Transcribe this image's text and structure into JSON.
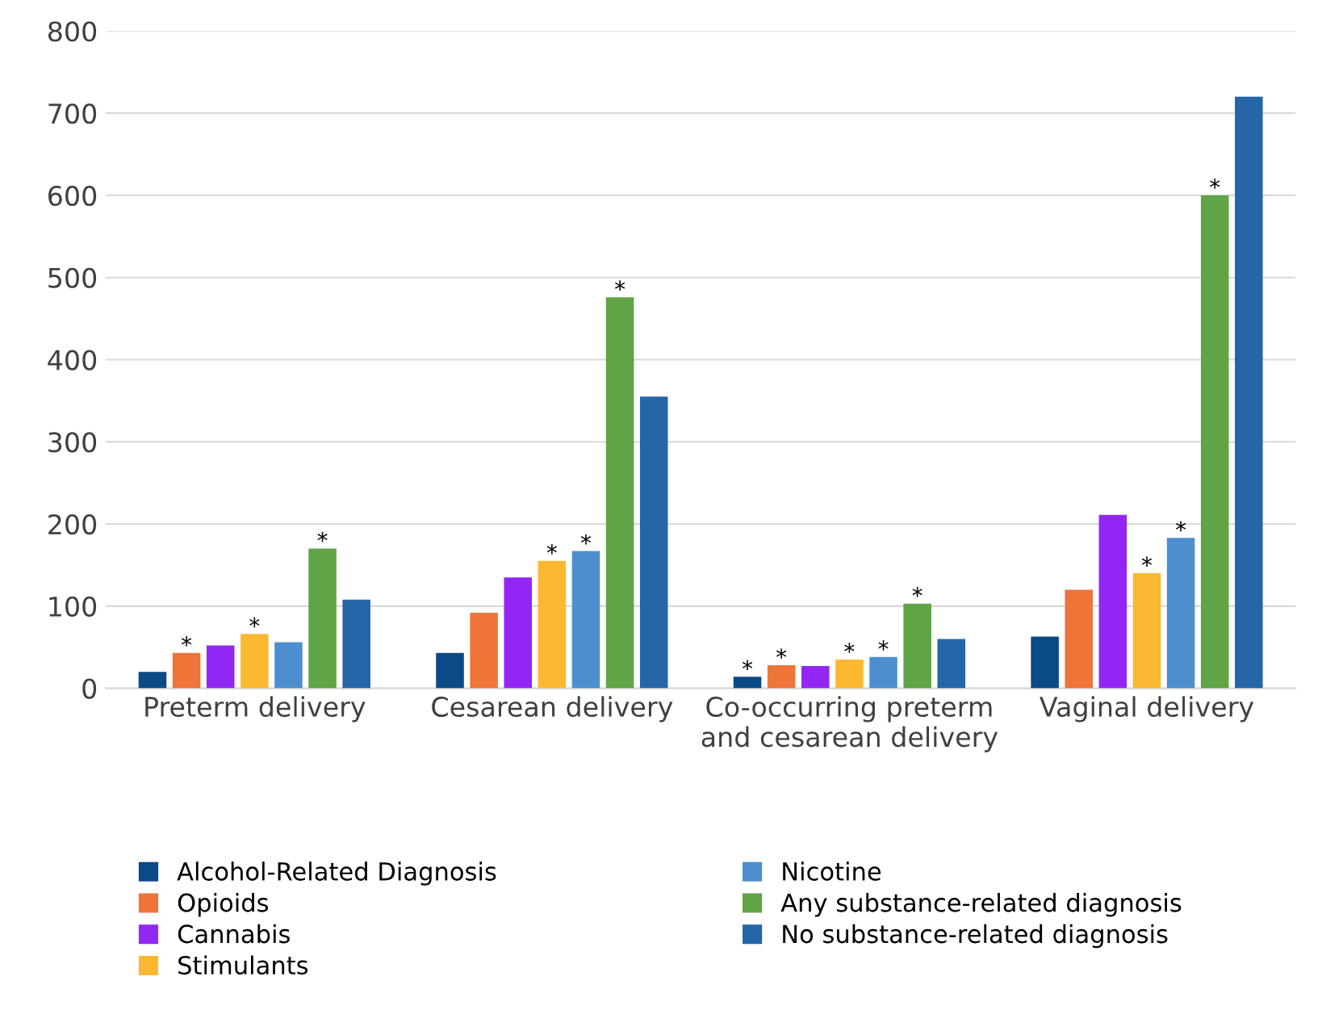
{
  "chart_data": {
    "type": "bar",
    "categories": [
      "Preterm delivery",
      "Cesarean delivery",
      "Co-occurring preterm\nand cesarean delivery",
      "Vaginal delivery"
    ],
    "series": [
      {
        "name": "Alcohol-Related Diagnosis",
        "color": "#0a4a86",
        "values": [
          20,
          43,
          14,
          63
        ],
        "value_labels": [
          null,
          null,
          "*",
          null
        ]
      },
      {
        "name": "Opioids",
        "color": "#ee7438",
        "values": [
          43,
          92,
          28,
          120
        ],
        "value_labels": [
          "*",
          null,
          "*",
          null
        ]
      },
      {
        "name": "Cannabis",
        "color": "#9227f5",
        "values": [
          52,
          135,
          27,
          211
        ],
        "value_labels": [
          null,
          null,
          null,
          null
        ]
      },
      {
        "name": "Stimulants",
        "color": "#fcb830",
        "values": [
          66,
          155,
          35,
          140
        ],
        "value_labels": [
          "*",
          "*",
          "*",
          "*"
        ]
      },
      {
        "name": "Nicotine",
        "color": "#4d8fce",
        "values": [
          56,
          167,
          38,
          183
        ],
        "value_labels": [
          null,
          "*",
          "*",
          "*"
        ]
      },
      {
        "name": "Any substance-related diagnosis",
        "color": "#5fa445",
        "values": [
          170,
          476,
          103,
          600
        ],
        "value_labels": [
          "*",
          "*",
          "*",
          "*"
        ]
      },
      {
        "name": "No substance-related diagnosis",
        "color": "#2466a8",
        "values": [
          108,
          355,
          60,
          720
        ],
        "value_labels": [
          null,
          null,
          null,
          null
        ]
      }
    ],
    "ylim": [
      0,
      800
    ],
    "yticks": [
      0,
      100,
      200,
      300,
      400,
      500,
      600,
      700,
      800
    ],
    "grid": "y",
    "legend": "bottom"
  }
}
